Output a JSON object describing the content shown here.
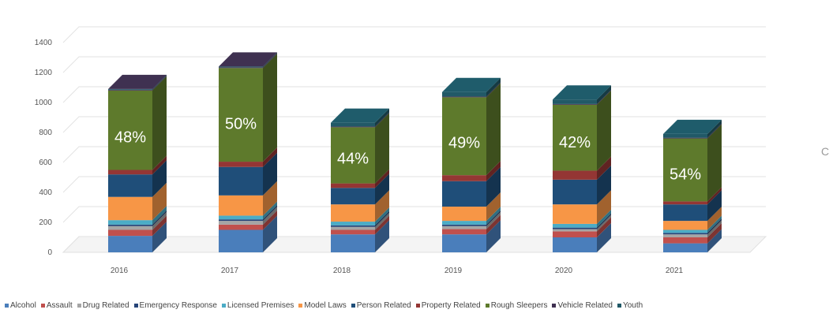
{
  "chart_data": {
    "type": "bar",
    "stacked": true,
    "three_d": true,
    "title": "",
    "xlabel": "",
    "ylabel": "",
    "ylim": [
      0,
      1400
    ],
    "yticks": [
      0,
      200,
      400,
      600,
      800,
      1000,
      1200,
      1400
    ],
    "grid": true,
    "legend_position": "bottom",
    "categories": [
      "2016",
      "2017",
      "2018",
      "2019",
      "2020",
      "2021"
    ],
    "series": [
      {
        "name": "Alcohol",
        "color": "#4A7EBB",
        "values": [
          110,
          150,
          120,
          120,
          100,
          60
        ]
      },
      {
        "name": "Assault",
        "color": "#C0504D",
        "values": [
          40,
          35,
          30,
          35,
          40,
          40
        ]
      },
      {
        "name": "Drug Related",
        "color": "#A5A5A5",
        "values": [
          25,
          25,
          20,
          20,
          15,
          20
        ]
      },
      {
        "name": "Emergency Response",
        "color": "#264478",
        "values": [
          10,
          10,
          10,
          10,
          10,
          10
        ]
      },
      {
        "name": "Licensed Premises",
        "color": "#4BACC6",
        "values": [
          30,
          25,
          25,
          25,
          25,
          20
        ]
      },
      {
        "name": "Model Laws",
        "color": "#F79646",
        "values": [
          155,
          135,
          115,
          95,
          130,
          60
        ]
      },
      {
        "name": "Person Related",
        "color": "#1F4E79",
        "values": [
          150,
          190,
          110,
          170,
          165,
          110
        ]
      },
      {
        "name": "Property Related",
        "color": "#943634",
        "values": [
          30,
          35,
          30,
          40,
          60,
          20
        ]
      },
      {
        "name": "Rough Sleepers",
        "color": "#5E7A2C",
        "values": [
          530,
          625,
          375,
          520,
          440,
          420
        ]
      },
      {
        "name": "Vehicle Related",
        "color": "#403151",
        "values": [
          5,
          5,
          5,
          5,
          5,
          5
        ]
      },
      {
        "name": "Youth",
        "color": "#215967",
        "values": [
          5,
          5,
          25,
          30,
          30,
          25
        ]
      }
    ],
    "annotations": [
      "48%",
      "50%",
      "44%",
      "49%",
      "42%",
      "54%"
    ],
    "top_cap_colors": [
      "#3F3151",
      "#3F3151",
      "#1F5C6B",
      "#1F5C6B",
      "#1F5C6B",
      "#1F5C6B"
    ]
  },
  "edge_glyph": "C"
}
